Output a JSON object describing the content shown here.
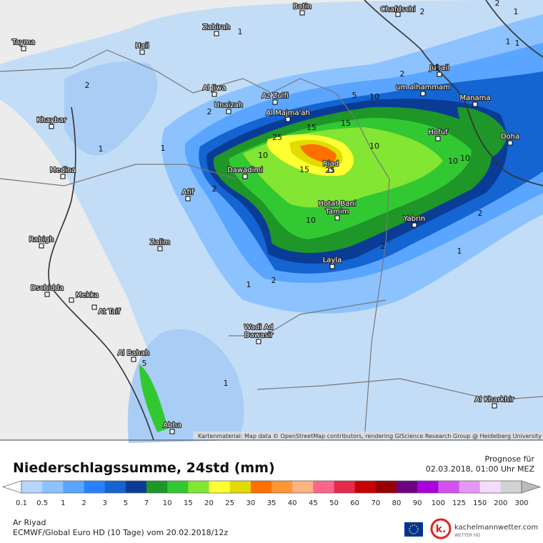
{
  "map": {
    "places": [
      "Batin",
      "Chafdschi",
      "Zabirah",
      "Tayma",
      "Hail",
      "Jubail",
      "um alhammam",
      "Manama",
      "Al Jiwa",
      "Az Zulfi",
      "Unaizah",
      "Al Majma'ah",
      "Khaybar",
      "Hofuf",
      "Doha",
      "Medina",
      "Dawadimi",
      "Riad",
      "Afif",
      "Hotat Bani",
      "Tamim",
      "Yabrin",
      "Rabigh",
      "Zalim",
      "Layla",
      "Dschidda",
      "Mekka",
      "At Taif",
      "Wadi Ad",
      "Dawasir",
      "Al Bahah",
      "Abha",
      "Al Kharkhir"
    ],
    "contour_labels": [
      "1",
      "2",
      "1",
      "2",
      "1",
      "2",
      "25",
      "15",
      "15",
      "10",
      "10",
      "15",
      "25",
      "10",
      "5",
      "10",
      "10",
      "2",
      "1",
      "10",
      "2",
      "1",
      "2",
      "2",
      "1",
      "1",
      "5",
      "1",
      "2",
      "1",
      "2",
      "1"
    ],
    "attribution": "Kartenmaterial: Map data © OpenStreetMap contributors, rendering GIScience Research Group @ Heidelberg University"
  },
  "header": {
    "title": "Niederschlagssumme, 24std (mm)",
    "forecast_label": "Prognose für",
    "forecast_time": "02.03.2018, 01:00 Uhr MEZ"
  },
  "legend": {
    "labels": [
      "0.1",
      "0.5",
      "1",
      "2",
      "3",
      "5",
      "7",
      "10",
      "15",
      "20",
      "25",
      "30",
      "35",
      "40",
      "45",
      "50",
      "60",
      "70",
      "80",
      "90",
      "100",
      "125",
      "150",
      "200",
      "300"
    ],
    "colors": [
      "#b4d7ff",
      "#8cc3ff",
      "#5aa5ff",
      "#2882ff",
      "#1464d2",
      "#0a3c96",
      "#1e9628",
      "#32c832",
      "#82e632",
      "#ffff32",
      "#e1dc00",
      "#ff6e00",
      "#ff9632",
      "#ffb482",
      "#ff648c",
      "#e6284b",
      "#c80000",
      "#960000",
      "#6e0082",
      "#aa00dc",
      "#d250f0",
      "#e696f5",
      "#f5dcfa",
      "#d2d2d2"
    ]
  },
  "footer": {
    "location": "Ar Riyad",
    "model": "ECMWF/Global Euro HD (10 Tage) vom 20.02.2018/12z",
    "brand": "kachelmannwetter.com",
    "brand_sub": "WETTER HD"
  }
}
